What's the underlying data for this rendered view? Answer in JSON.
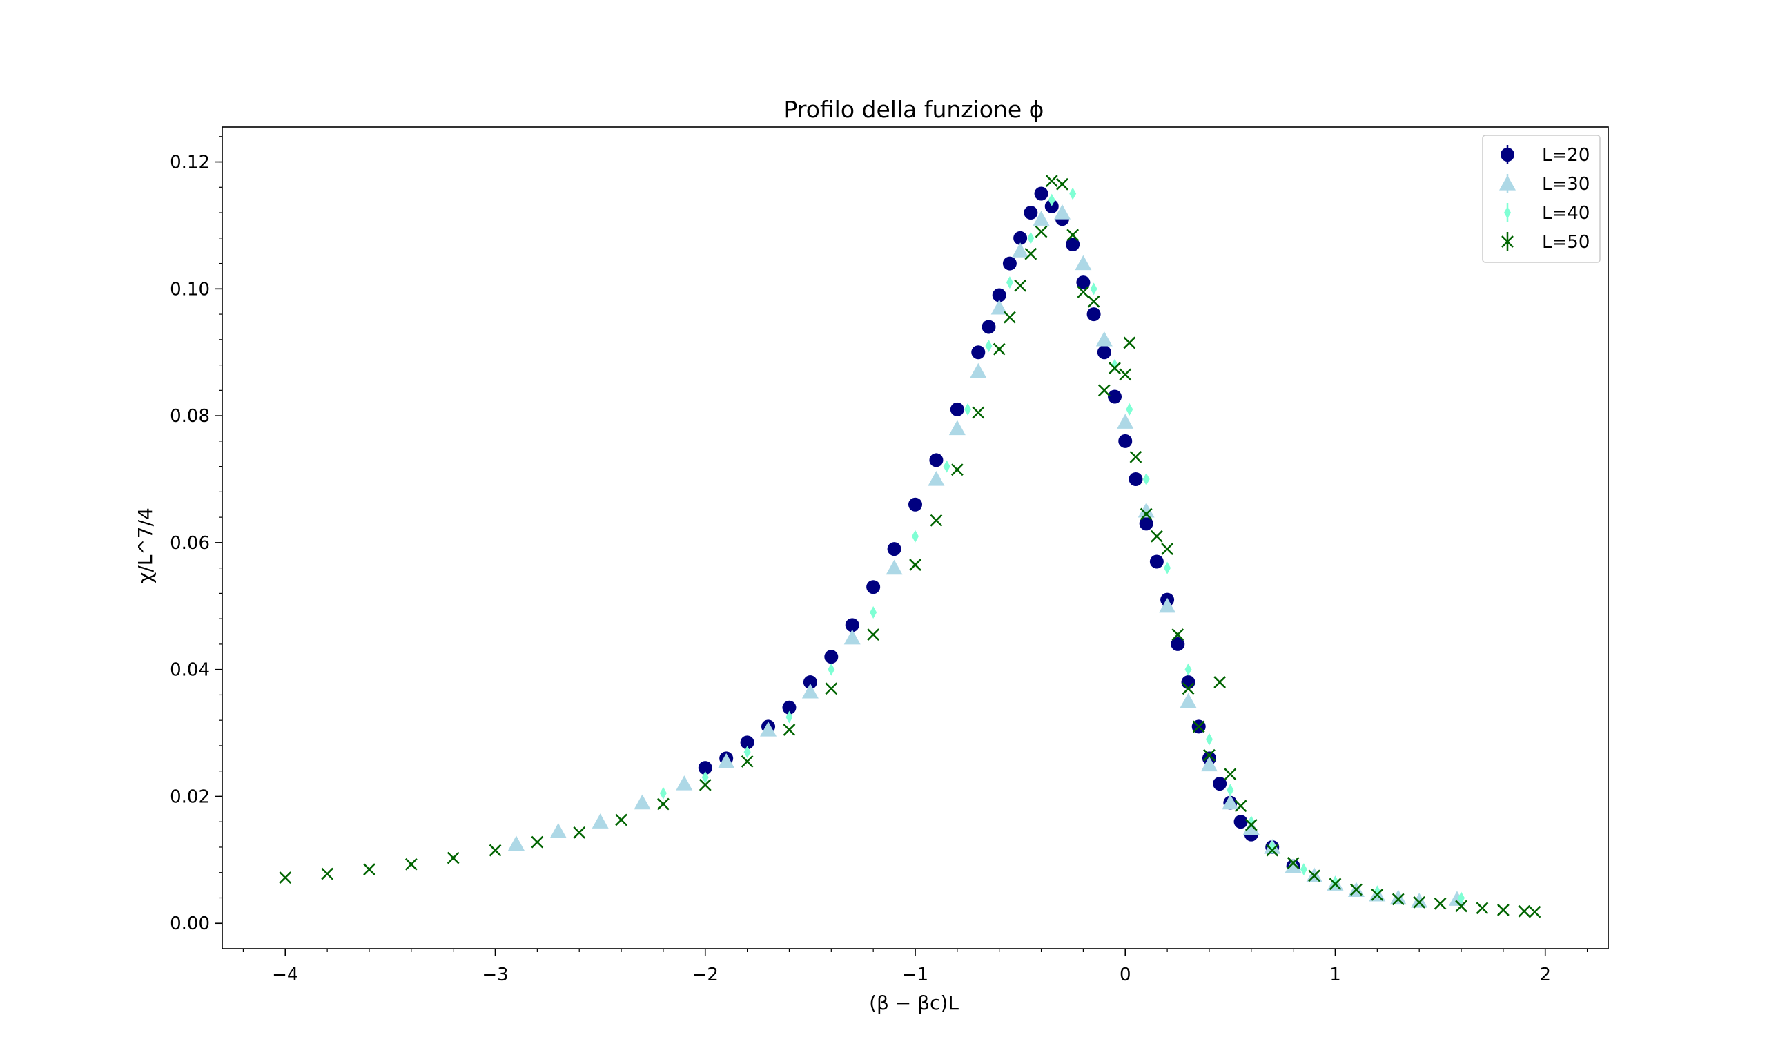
{
  "chart_data": {
    "type": "scatter",
    "title": "Profilo della funzione ϕ",
    "xlabel": "(β − βc)L",
    "ylabel": "χ/L^7/4",
    "xlim": [
      -4.3,
      2.3
    ],
    "ylim": [
      -0.004,
      0.1255
    ],
    "xticks": [
      -4,
      -3,
      -2,
      -1,
      0,
      1,
      2
    ],
    "xtick_labels": [
      "−4",
      "−3",
      "−2",
      "−1",
      "0",
      "1",
      "2"
    ],
    "yticks": [
      0.0,
      0.02,
      0.04,
      0.06,
      0.08,
      0.1,
      0.12
    ],
    "ytick_labels": [
      "0.00",
      "0.02",
      "0.04",
      "0.06",
      "0.08",
      "0.10",
      "0.12"
    ],
    "grid": false,
    "legend_position": "top-right",
    "series": [
      {
        "name": "L=20",
        "marker": "circle",
        "color": "#000080",
        "points": [
          [
            -2.0,
            0.0245
          ],
          [
            -1.9,
            0.026
          ],
          [
            -1.8,
            0.0285
          ],
          [
            -1.7,
            0.031
          ],
          [
            -1.6,
            0.034
          ],
          [
            -1.5,
            0.038
          ],
          [
            -1.4,
            0.042
          ],
          [
            -1.3,
            0.047
          ],
          [
            -1.2,
            0.053
          ],
          [
            -1.1,
            0.059
          ],
          [
            -1.0,
            0.066
          ],
          [
            -0.9,
            0.073
          ],
          [
            -0.8,
            0.081
          ],
          [
            -0.7,
            0.09
          ],
          [
            -0.65,
            0.094
          ],
          [
            -0.6,
            0.099
          ],
          [
            -0.55,
            0.104
          ],
          [
            -0.5,
            0.108
          ],
          [
            -0.45,
            0.112
          ],
          [
            -0.4,
            0.115
          ],
          [
            -0.35,
            0.113
          ],
          [
            -0.3,
            0.111
          ],
          [
            -0.25,
            0.107
          ],
          [
            -0.2,
            0.101
          ],
          [
            -0.15,
            0.096
          ],
          [
            -0.1,
            0.09
          ],
          [
            -0.05,
            0.083
          ],
          [
            0.0,
            0.076
          ],
          [
            0.05,
            0.07
          ],
          [
            0.1,
            0.063
          ],
          [
            0.15,
            0.057
          ],
          [
            0.2,
            0.051
          ],
          [
            0.25,
            0.044
          ],
          [
            0.3,
            0.038
          ],
          [
            0.35,
            0.031
          ],
          [
            0.4,
            0.026
          ],
          [
            0.45,
            0.022
          ],
          [
            0.5,
            0.019
          ],
          [
            0.55,
            0.016
          ],
          [
            0.6,
            0.014
          ],
          [
            0.7,
            0.012
          ],
          [
            0.8,
            0.009
          ]
        ]
      },
      {
        "name": "L=30",
        "marker": "triangle",
        "color": "#add8e6",
        "points": [
          [
            -2.9,
            0.0125
          ],
          [
            -2.7,
            0.0145
          ],
          [
            -2.5,
            0.016
          ],
          [
            -2.3,
            0.019
          ],
          [
            -2.1,
            0.022
          ],
          [
            -1.9,
            0.0255
          ],
          [
            -1.7,
            0.0305
          ],
          [
            -1.5,
            0.0365
          ],
          [
            -1.3,
            0.045
          ],
          [
            -1.1,
            0.056
          ],
          [
            -0.9,
            0.07
          ],
          [
            -0.8,
            0.078
          ],
          [
            -0.7,
            0.087
          ],
          [
            -0.6,
            0.097
          ],
          [
            -0.5,
            0.106
          ],
          [
            -0.4,
            0.111
          ],
          [
            -0.3,
            0.112
          ],
          [
            -0.2,
            0.104
          ],
          [
            -0.1,
            0.092
          ],
          [
            0.0,
            0.079
          ],
          [
            0.1,
            0.065
          ],
          [
            0.2,
            0.05
          ],
          [
            0.3,
            0.035
          ],
          [
            0.4,
            0.025
          ],
          [
            0.5,
            0.019
          ],
          [
            0.6,
            0.015
          ],
          [
            0.7,
            0.012
          ],
          [
            0.8,
            0.009
          ],
          [
            0.9,
            0.0075
          ],
          [
            1.0,
            0.0062
          ],
          [
            1.1,
            0.0052
          ],
          [
            1.2,
            0.0045
          ],
          [
            1.3,
            0.004
          ],
          [
            1.4,
            0.0035
          ],
          [
            1.58,
            0.0038
          ]
        ]
      },
      {
        "name": "L=40",
        "marker": "thin-diamond",
        "color": "#7fffd4",
        "points": [
          [
            -2.2,
            0.0205
          ],
          [
            -2.0,
            0.023
          ],
          [
            -1.8,
            0.027
          ],
          [
            -1.6,
            0.0325
          ],
          [
            -1.4,
            0.04
          ],
          [
            -1.2,
            0.049
          ],
          [
            -1.0,
            0.061
          ],
          [
            -0.85,
            0.072
          ],
          [
            -0.75,
            0.081
          ],
          [
            -0.65,
            0.091
          ],
          [
            -0.55,
            0.101
          ],
          [
            -0.45,
            0.108
          ],
          [
            -0.35,
            0.114
          ],
          [
            -0.25,
            0.115
          ],
          [
            -0.15,
            0.1
          ],
          [
            -0.05,
            0.088
          ],
          [
            0.02,
            0.081
          ],
          [
            0.1,
            0.07
          ],
          [
            0.2,
            0.056
          ],
          [
            0.3,
            0.04
          ],
          [
            0.4,
            0.029
          ],
          [
            0.5,
            0.021
          ],
          [
            0.6,
            0.016
          ],
          [
            0.7,
            0.012
          ],
          [
            0.85,
            0.0085
          ],
          [
            1.0,
            0.0065
          ],
          [
            1.2,
            0.005
          ],
          [
            1.6,
            0.004
          ]
        ]
      },
      {
        "name": "L=50",
        "marker": "x",
        "color": "#006400",
        "points": [
          [
            -4.0,
            0.0072
          ],
          [
            -3.8,
            0.0078
          ],
          [
            -3.6,
            0.0085
          ],
          [
            -3.4,
            0.0093
          ],
          [
            -3.2,
            0.0103
          ],
          [
            -3.0,
            0.0115
          ],
          [
            -2.8,
            0.0128
          ],
          [
            -2.6,
            0.0143
          ],
          [
            -2.4,
            0.0163
          ],
          [
            -2.2,
            0.0188
          ],
          [
            -2.0,
            0.0218
          ],
          [
            -1.8,
            0.0255
          ],
          [
            -1.6,
            0.0305
          ],
          [
            -1.4,
            0.037
          ],
          [
            -1.2,
            0.0455
          ],
          [
            -1.0,
            0.0565
          ],
          [
            -0.9,
            0.0635
          ],
          [
            -0.8,
            0.0715
          ],
          [
            -0.7,
            0.0805
          ],
          [
            -0.6,
            0.0905
          ],
          [
            -0.55,
            0.0955
          ],
          [
            -0.5,
            0.1005
          ],
          [
            -0.45,
            0.1055
          ],
          [
            -0.4,
            0.109
          ],
          [
            -0.35,
            0.117
          ],
          [
            -0.3,
            0.1165
          ],
          [
            -0.25,
            0.1085
          ],
          [
            -0.2,
            0.0995
          ],
          [
            -0.15,
            0.098
          ],
          [
            -0.1,
            0.084
          ],
          [
            -0.05,
            0.0875
          ],
          [
            0.0,
            0.0865
          ],
          [
            0.02,
            0.0915
          ],
          [
            0.05,
            0.0735
          ],
          [
            0.1,
            0.0645
          ],
          [
            0.15,
            0.061
          ],
          [
            0.2,
            0.059
          ],
          [
            0.25,
            0.0455
          ],
          [
            0.3,
            0.037
          ],
          [
            0.35,
            0.031
          ],
          [
            0.4,
            0.0265
          ],
          [
            0.45,
            0.038
          ],
          [
            0.5,
            0.0235
          ],
          [
            0.55,
            0.0185
          ],
          [
            0.6,
            0.0155
          ],
          [
            0.7,
            0.0115
          ],
          [
            0.8,
            0.0095
          ],
          [
            0.9,
            0.0075
          ],
          [
            1.0,
            0.0062
          ],
          [
            1.1,
            0.0053
          ],
          [
            1.2,
            0.0045
          ],
          [
            1.3,
            0.0038
          ],
          [
            1.4,
            0.0033
          ],
          [
            1.5,
            0.0031
          ],
          [
            1.6,
            0.0027
          ],
          [
            1.7,
            0.0024
          ],
          [
            1.8,
            0.0021
          ],
          [
            1.9,
            0.0019
          ],
          [
            1.95,
            0.0018
          ]
        ]
      }
    ]
  }
}
